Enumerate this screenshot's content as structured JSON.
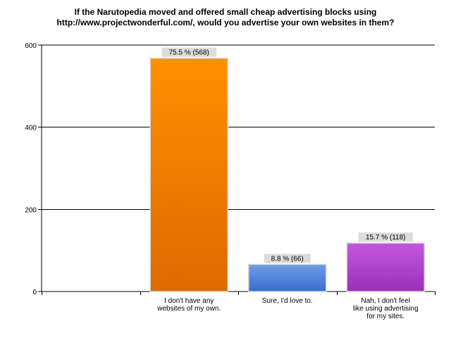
{
  "chart_data": {
    "type": "bar",
    "title": [
      "If the Narutopedia moved and offered small cheap advertising blocks using",
      "http://www.projectwonderful.com/, would you advertise your own websites in them?"
    ],
    "xlabel": "",
    "ylabel": "",
    "ylim": [
      0,
      600
    ],
    "yticks": [
      "0",
      "200",
      "400",
      "600"
    ],
    "grid": true,
    "legend": "none",
    "categories": [
      [
        "I don't have any",
        "websites of my own."
      ],
      [
        "Sure, I'd love to."
      ],
      [
        "Nah, I don't feel",
        "like using advertising",
        "for my sites."
      ]
    ],
    "values": [
      568,
      66,
      118
    ],
    "data_labels": [
      "75.5 % (568)",
      "8.8 % (66)",
      "15.7 % (118)"
    ],
    "colors": [
      {
        "top": "#ff9000",
        "bottom": "#dd6a00"
      },
      {
        "top": "#6f9de6",
        "bottom": "#3a6cd0"
      },
      {
        "top": "#c158dc",
        "bottom": "#9b30b8"
      }
    ]
  }
}
